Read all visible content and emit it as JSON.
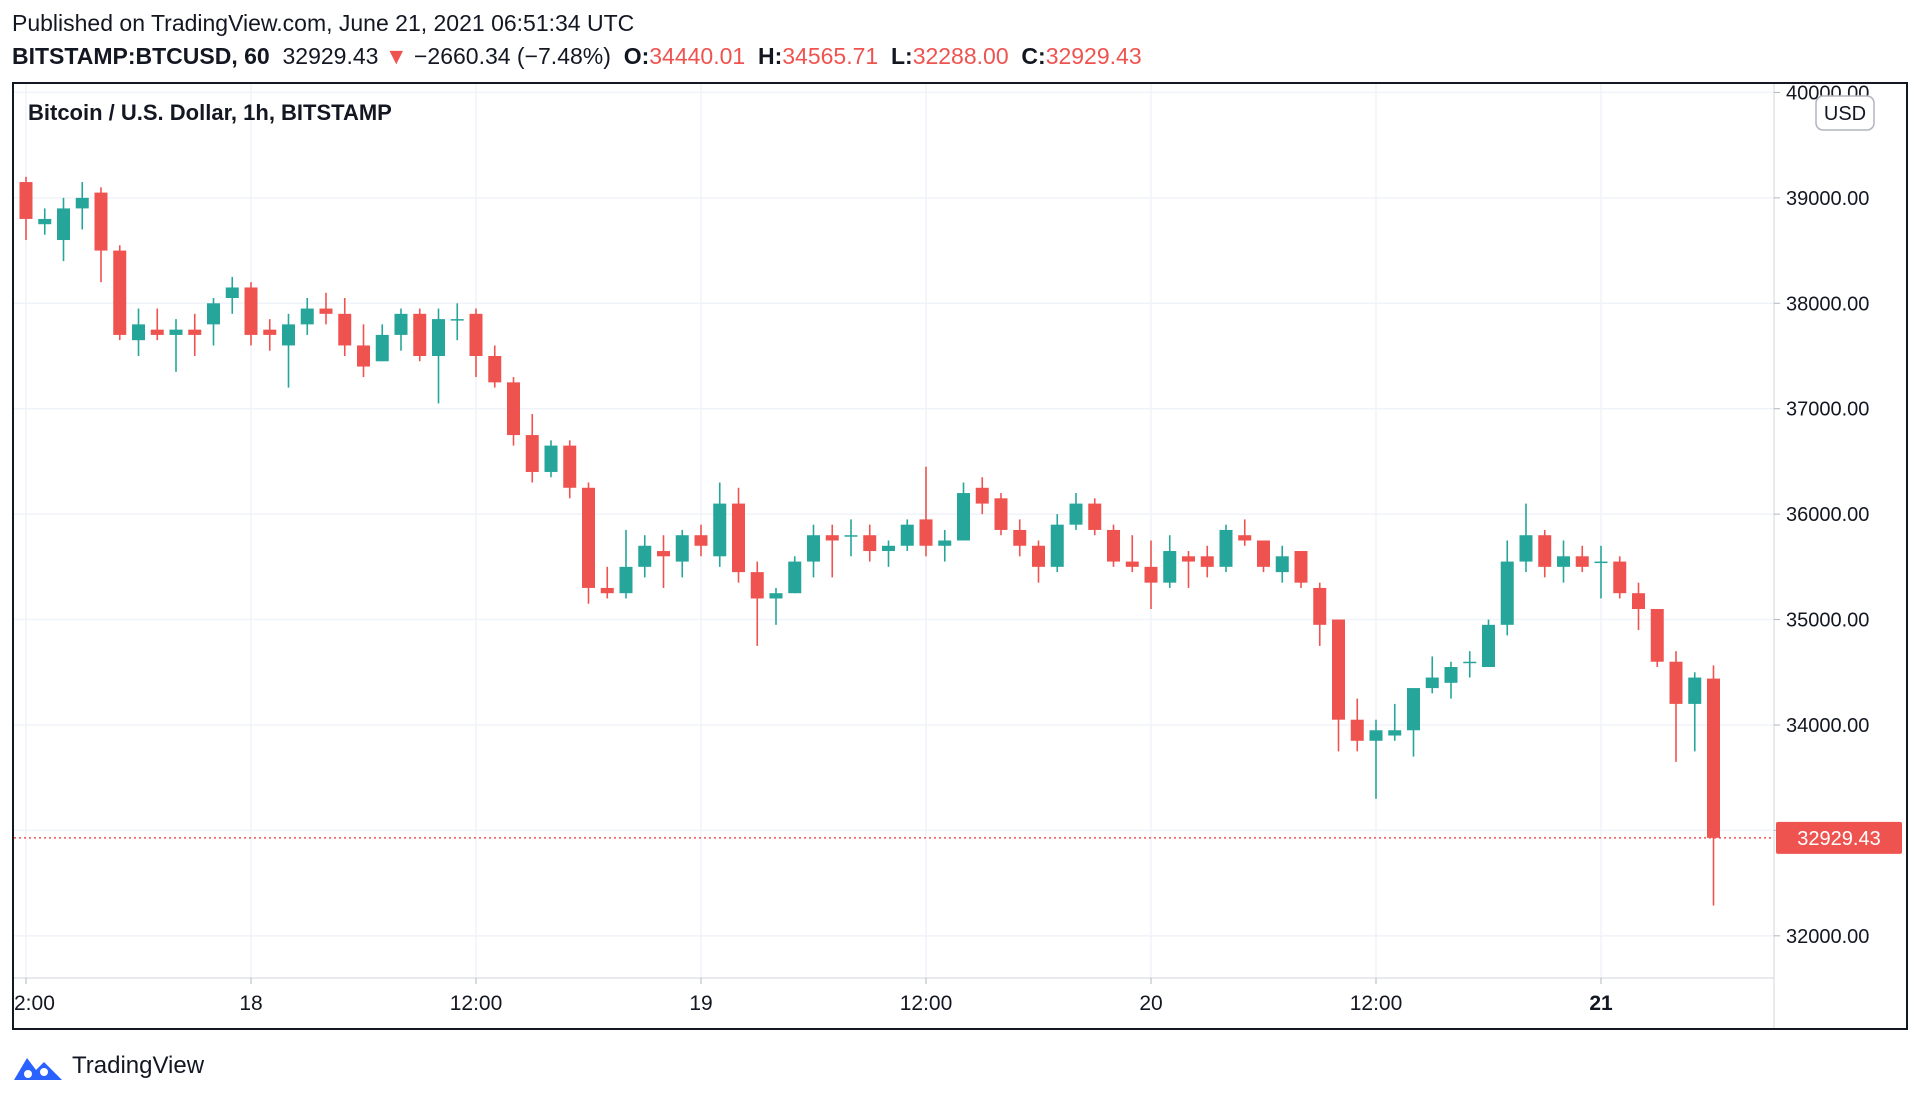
{
  "header": {
    "published": "Published on TradingView.com, June 21, 2021 06:51:34 UTC",
    "symbol": "BITSTAMP:BTCUSD, 60",
    "last": "32929.43",
    "change": "−2660.34 (−7.48%)",
    "o_label": "O:",
    "o_value": "34440.01",
    "h_label": "H:",
    "h_value": "34565.71",
    "l_label": "L:",
    "l_value": "32288.00",
    "c_label": "C:",
    "c_value": "32929.43"
  },
  "brand": {
    "name": "TradingView",
    "icon": "tradingview-logo-icon"
  },
  "colors": {
    "up": "#26a69a",
    "down": "#ef5350",
    "grid": "#f0f3fa",
    "text": "#131722"
  },
  "chart_data": {
    "type": "candlestick",
    "title": "Bitcoin / U.S. Dollar, 1h, BITSTAMP",
    "currency_badge": "USD",
    "last_price_label": "32929.43",
    "last_price": 32929.43,
    "ylim": [
      31600,
      40080
    ],
    "yticks": [
      32000,
      33000,
      34000,
      35000,
      36000,
      37000,
      38000,
      39000,
      40000
    ],
    "ytick_labels": [
      "32000.00",
      "33000.00",
      "34000.00",
      "35000.00",
      "36000.00",
      "37000.00",
      "38000.00",
      "39000.00",
      "40000.00"
    ],
    "xticks": [
      {
        "label": "2:00",
        "index": 0,
        "bold": false
      },
      {
        "label": "18",
        "index": 12,
        "bold": false
      },
      {
        "label": "12:00",
        "index": 24,
        "bold": false
      },
      {
        "label": "19",
        "index": 36,
        "bold": false
      },
      {
        "label": "12:00",
        "index": 48,
        "bold": false
      },
      {
        "label": "20",
        "index": 60,
        "bold": false
      },
      {
        "label": "12:00",
        "index": 72,
        "bold": false
      },
      {
        "label": "21",
        "index": 84,
        "bold": true
      }
    ],
    "candles": [
      [
        39150,
        39200,
        38600,
        38800
      ],
      [
        38750,
        38900,
        38650,
        38800
      ],
      [
        38600,
        39000,
        38400,
        38900
      ],
      [
        38900,
        39150,
        38700,
        39000
      ],
      [
        39050,
        39100,
        38200,
        38500
      ],
      [
        38500,
        38550,
        37650,
        37700
      ],
      [
        37650,
        37950,
        37500,
        37800
      ],
      [
        37750,
        37950,
        37650,
        37700
      ],
      [
        37700,
        37850,
        37350,
        37750
      ],
      [
        37750,
        37900,
        37500,
        37700
      ],
      [
        37800,
        38050,
        37600,
        38000
      ],
      [
        38050,
        38250,
        37900,
        38150
      ],
      [
        38150,
        38200,
        37600,
        37700
      ],
      [
        37750,
        37850,
        37550,
        37700
      ],
      [
        37600,
        37900,
        37200,
        37800
      ],
      [
        37800,
        38050,
        37700,
        37950
      ],
      [
        37950,
        38100,
        37800,
        37900
      ],
      [
        37900,
        38050,
        37500,
        37600
      ],
      [
        37600,
        37800,
        37300,
        37400
      ],
      [
        37450,
        37800,
        37450,
        37700
      ],
      [
        37700,
        37950,
        37550,
        37900
      ],
      [
        37900,
        37950,
        37450,
        37500
      ],
      [
        37500,
        37950,
        37050,
        37850
      ],
      [
        37850,
        38000,
        37650,
        37850
      ],
      [
        37900,
        37950,
        37300,
        37500
      ],
      [
        37500,
        37600,
        37200,
        37250
      ],
      [
        37250,
        37300,
        36650,
        36750
      ],
      [
        36750,
        36950,
        36300,
        36400
      ],
      [
        36400,
        36700,
        36350,
        36650
      ],
      [
        36650,
        36700,
        36150,
        36250
      ],
      [
        36250,
        36300,
        35150,
        35300
      ],
      [
        35300,
        35500,
        35200,
        35250
      ],
      [
        35250,
        35850,
        35200,
        35500
      ],
      [
        35500,
        35800,
        35400,
        35700
      ],
      [
        35650,
        35800,
        35300,
        35600
      ],
      [
        35550,
        35850,
        35400,
        35800
      ],
      [
        35800,
        35900,
        35600,
        35700
      ],
      [
        35600,
        36300,
        35500,
        36100
      ],
      [
        36100,
        36250,
        35350,
        35450
      ],
      [
        35450,
        35550,
        34750,
        35200
      ],
      [
        35200,
        35300,
        34950,
        35250
      ],
      [
        35250,
        35600,
        35250,
        35550
      ],
      [
        35550,
        35900,
        35400,
        35800
      ],
      [
        35800,
        35900,
        35400,
        35750
      ],
      [
        35800,
        35950,
        35600,
        35800
      ],
      [
        35800,
        35900,
        35550,
        35650
      ],
      [
        35650,
        35750,
        35500,
        35700
      ],
      [
        35700,
        35950,
        35650,
        35900
      ],
      [
        35950,
        36450,
        35600,
        35700
      ],
      [
        35700,
        35850,
        35550,
        35750
      ],
      [
        35750,
        36300,
        35750,
        36200
      ],
      [
        36250,
        36350,
        36000,
        36100
      ],
      [
        36150,
        36200,
        35800,
        35850
      ],
      [
        35850,
        35950,
        35600,
        35700
      ],
      [
        35700,
        35750,
        35350,
        35500
      ],
      [
        35500,
        36000,
        35450,
        35900
      ],
      [
        35900,
        36200,
        35850,
        36100
      ],
      [
        36100,
        36150,
        35800,
        35850
      ],
      [
        35850,
        35900,
        35500,
        35550
      ],
      [
        35550,
        35800,
        35450,
        35500
      ],
      [
        35500,
        35750,
        35100,
        35350
      ],
      [
        35350,
        35800,
        35300,
        35650
      ],
      [
        35600,
        35650,
        35300,
        35550
      ],
      [
        35600,
        35700,
        35400,
        35500
      ],
      [
        35500,
        35900,
        35450,
        35850
      ],
      [
        35800,
        35950,
        35700,
        35750
      ],
      [
        35750,
        35750,
        35450,
        35500
      ],
      [
        35450,
        35700,
        35350,
        35600
      ],
      [
        35650,
        35650,
        35300,
        35350
      ],
      [
        35300,
        35350,
        34750,
        34950
      ],
      [
        35000,
        35000,
        33750,
        34050
      ],
      [
        34050,
        34250,
        33750,
        33850
      ],
      [
        33850,
        34050,
        33300,
        33950
      ],
      [
        33900,
        34200,
        33850,
        33950
      ],
      [
        33950,
        34350,
        33700,
        34350
      ],
      [
        34350,
        34650,
        34300,
        34450
      ],
      [
        34400,
        34600,
        34250,
        34550
      ],
      [
        34600,
        34700,
        34450,
        34600
      ],
      [
        34550,
        35000,
        34550,
        34950
      ],
      [
        34950,
        35750,
        34850,
        35550
      ],
      [
        35550,
        36100,
        35450,
        35800
      ],
      [
        35800,
        35850,
        35400,
        35500
      ],
      [
        35500,
        35750,
        35350,
        35600
      ],
      [
        35600,
        35700,
        35450,
        35500
      ],
      [
        35550,
        35700,
        35200,
        35550
      ],
      [
        35550,
        35600,
        35200,
        35250
      ],
      [
        35250,
        35350,
        34900,
        35100
      ],
      [
        35100,
        35100,
        34550,
        34600
      ],
      [
        34600,
        34700,
        33650,
        34200
      ],
      [
        34200,
        34500,
        33750,
        34450
      ],
      [
        34440.01,
        34565.71,
        32288.0,
        32929.43
      ]
    ]
  }
}
